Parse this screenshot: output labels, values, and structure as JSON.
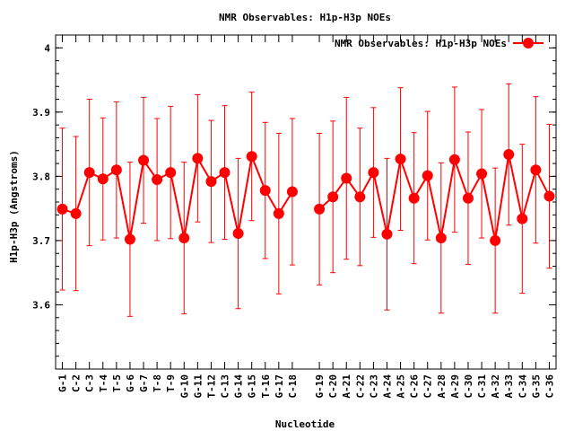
{
  "chart_data": {
    "type": "line",
    "title": "NMR Observables: H1p-H3p NOEs",
    "xlabel": "Nucleotide",
    "ylabel": "H1p-H3p (Angstroms)",
    "ylim": [
      3.5,
      4.02
    ],
    "yticks": [
      3.6,
      3.7,
      3.8,
      3.9,
      4
    ],
    "ytick_labels": [
      "3.6",
      "3.7",
      "3.8",
      "3.9",
      "4"
    ],
    "grid": false,
    "legend_position": "top-right",
    "color": "#ff0000",
    "series": [
      {
        "name": "NMR Observables: H1p-H3p NOEs",
        "segments": [
          [
            {
              "x": 1,
              "label": "G-1",
              "y": 3.749,
              "err": 0.126
            },
            {
              "x": 2,
              "label": "C-2",
              "y": 3.742,
              "err": 0.12
            },
            {
              "x": 3,
              "label": "C-3",
              "y": 3.806,
              "err": 0.114
            },
            {
              "x": 4,
              "label": "T-4",
              "y": 3.796,
              "err": 0.095
            },
            {
              "x": 5,
              "label": "T-5",
              "y": 3.81,
              "err": 0.106
            },
            {
              "x": 6,
              "label": "G-6",
              "y": 3.702,
              "err": 0.12
            },
            {
              "x": 7,
              "label": "G-7",
              "y": 3.825,
              "err": 0.098
            },
            {
              "x": 8,
              "label": "T-8",
              "y": 3.795,
              "err": 0.095
            },
            {
              "x": 9,
              "label": "T-9",
              "y": 3.806,
              "err": 0.103
            },
            {
              "x": 10,
              "label": "G-10",
              "y": 3.704,
              "err": 0.118
            },
            {
              "x": 11,
              "label": "G-11",
              "y": 3.828,
              "err": 0.099
            },
            {
              "x": 12,
              "label": "T-12",
              "y": 3.792,
              "err": 0.095
            },
            {
              "x": 13,
              "label": "C-13",
              "y": 3.806,
              "err": 0.104
            },
            {
              "x": 14,
              "label": "G-14",
              "y": 3.711,
              "err": 0.117
            },
            {
              "x": 15,
              "label": "G-15",
              "y": 3.831,
              "err": 0.1
            },
            {
              "x": 16,
              "label": "T-16",
              "y": 3.778,
              "err": 0.106
            },
            {
              "x": 17,
              "label": "G-17",
              "y": 3.742,
              "err": 0.125
            },
            {
              "x": 18,
              "label": "C-18",
              "y": 3.776,
              "err": 0.114
            }
          ],
          [
            {
              "x": 20,
              "label": "G-19",
              "y": 3.749,
              "err": 0.118
            },
            {
              "x": 21,
              "label": "C-20",
              "y": 3.768,
              "err": 0.118
            },
            {
              "x": 22,
              "label": "A-21",
              "y": 3.797,
              "err": 0.126
            },
            {
              "x": 23,
              "label": "C-22",
              "y": 3.768,
              "err": 0.107
            },
            {
              "x": 24,
              "label": "C-23",
              "y": 3.806,
              "err": 0.101
            },
            {
              "x": 25,
              "label": "A-24",
              "y": 3.71,
              "err": 0.118
            },
            {
              "x": 26,
              "label": "A-25",
              "y": 3.827,
              "err": 0.111
            },
            {
              "x": 27,
              "label": "C-26",
              "y": 3.766,
              "err": 0.102
            },
            {
              "x": 28,
              "label": "C-27",
              "y": 3.801,
              "err": 0.1
            },
            {
              "x": 29,
              "label": "A-28",
              "y": 3.704,
              "err": 0.117
            },
            {
              "x": 30,
              "label": "A-29",
              "y": 3.826,
              "err": 0.113
            },
            {
              "x": 31,
              "label": "C-30",
              "y": 3.766,
              "err": 0.103
            },
            {
              "x": 32,
              "label": "C-31",
              "y": 3.804,
              "err": 0.1
            },
            {
              "x": 33,
              "label": "A-32",
              "y": 3.7,
              "err": 0.113
            },
            {
              "x": 34,
              "label": "A-33",
              "y": 3.834,
              "err": 0.11
            },
            {
              "x": 35,
              "label": "C-34",
              "y": 3.734,
              "err": 0.116
            },
            {
              "x": 36,
              "label": "G-35",
              "y": 3.81,
              "err": 0.114
            },
            {
              "x": 37,
              "label": "C-36",
              "y": 3.769,
              "err": 0.112
            }
          ]
        ]
      }
    ]
  }
}
